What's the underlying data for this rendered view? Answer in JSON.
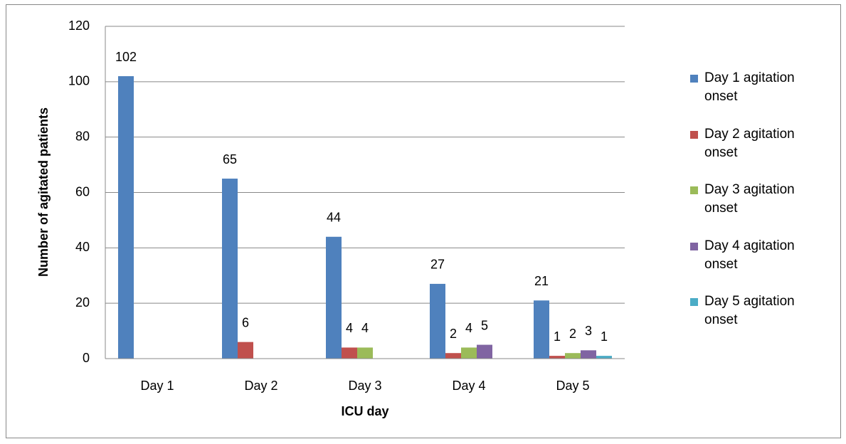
{
  "chart_data": {
    "type": "bar",
    "categories": [
      "Day 1",
      "Day 2",
      "Day 3",
      "Day 4",
      "Day 5"
    ],
    "series": [
      {
        "name": "Day 1 agitation onset",
        "color": "#4f81bd",
        "values": [
          102,
          65,
          44,
          27,
          21
        ]
      },
      {
        "name": "Day 2 agitation onset",
        "color": "#c0504d",
        "values": [
          null,
          6,
          4,
          2,
          1
        ]
      },
      {
        "name": "Day 3 agitation onset",
        "color": "#9bbb59",
        "values": [
          null,
          null,
          4,
          4,
          2
        ]
      },
      {
        "name": "Day 4 agitation onset",
        "color": "#8064a2",
        "values": [
          null,
          null,
          null,
          5,
          3
        ]
      },
      {
        "name": "Day 5 agitation onset",
        "color": "#4bacc6",
        "values": [
          null,
          null,
          null,
          null,
          1
        ]
      }
    ],
    "ylim": [
      0,
      120
    ],
    "yticks": [
      0,
      20,
      40,
      60,
      80,
      100,
      120
    ],
    "grid": true,
    "xlabel": "ICU day",
    "ylabel": "Number of agitated patients",
    "legend": "right"
  }
}
